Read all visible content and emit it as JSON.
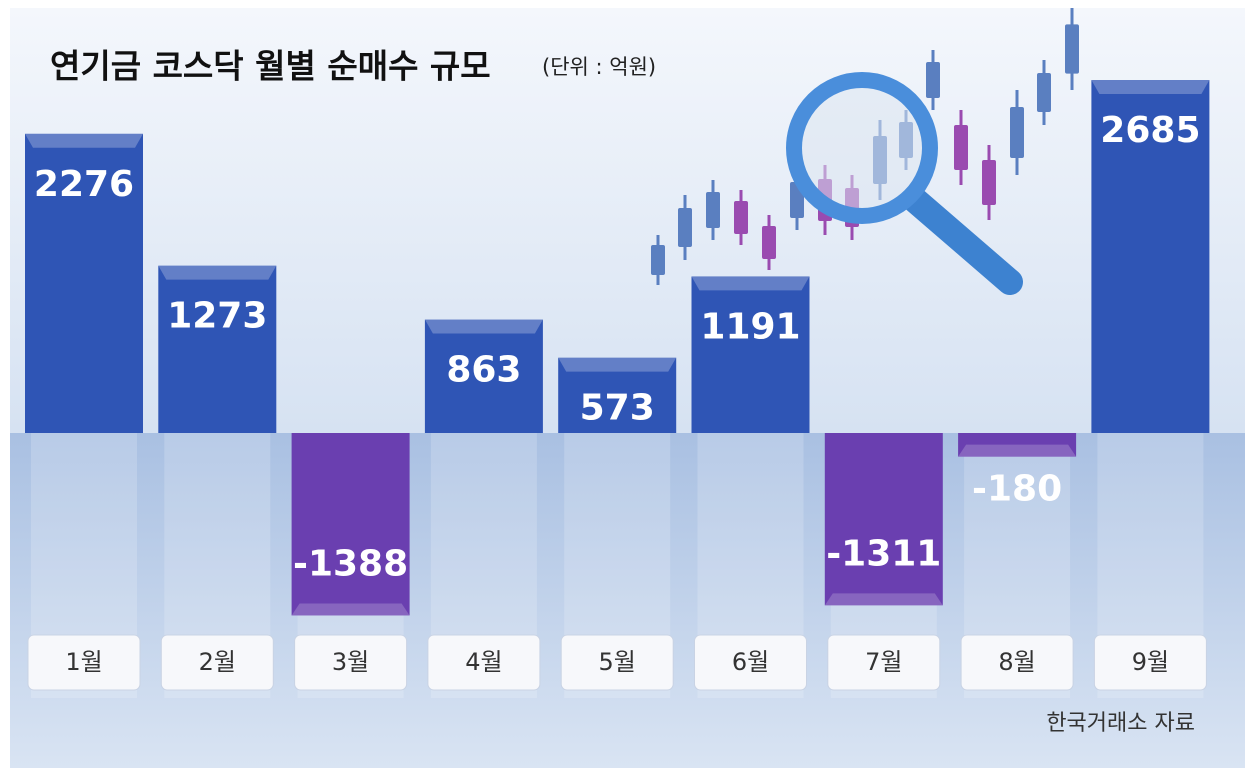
{
  "chart_data": {
    "type": "bar",
    "title": "연기금 코스닥 월별 순매수 규모",
    "subtitle": "(단위 : 억원)",
    "categories": [
      "1월",
      "2월",
      "3월",
      "4월",
      "5월",
      "6월",
      "7월",
      "8월",
      "9월"
    ],
    "values": [
      2276,
      1273,
      -1388,
      863,
      573,
      1191,
      -1311,
      -180,
      2685
    ],
    "color": "#2f55b5",
    "negative_color": "#6a3fb0",
    "source": "한국거래소 자료"
  }
}
